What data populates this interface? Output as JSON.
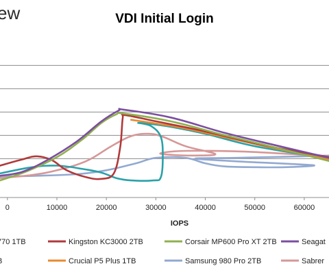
{
  "brand_text": "ew",
  "chart_data": {
    "type": "line",
    "title": "VDI Initial Login",
    "xlabel": "IOPS",
    "ylabel": "",
    "xlim": [
      -1500,
      65000
    ],
    "ylim": [
      -2,
      19
    ],
    "x_ticks": [
      {
        "value": 0,
        "label": "0"
      },
      {
        "value": 10000,
        "label": "10000"
      },
      {
        "value": 20000,
        "label": "20000"
      },
      {
        "value": 30000,
        "label": "30000"
      },
      {
        "value": 40000,
        "label": "40000"
      },
      {
        "value": 50000,
        "label": "50000"
      },
      {
        "value": 60000,
        "label": "60000"
      }
    ],
    "y_gridlines": [
      3,
      6,
      9,
      12,
      15
    ],
    "grid": true,
    "legend_position": "bottom",
    "series": [
      {
        "name": "Seagat",
        "color": "#7b4ea0",
        "points": [
          [
            -1500,
            0.8
          ],
          [
            3000,
            1.3
          ],
          [
            8000,
            2.8
          ],
          [
            14000,
            5.2
          ],
          [
            19000,
            7.8
          ],
          [
            22500,
            9.2
          ],
          [
            23500,
            9.3
          ],
          [
            33000,
            8.3
          ],
          [
            44000,
            6.3
          ],
          [
            55000,
            4.6
          ],
          [
            65000,
            3.1
          ]
        ]
      },
      {
        "name": "Corsair MP600 Pro XT 2TB",
        "color": "#8fb04e",
        "points": [
          [
            -1500,
            0.2
          ],
          [
            4000,
            1.4
          ],
          [
            10000,
            3.2
          ],
          [
            15000,
            5.4
          ],
          [
            19000,
            7.6
          ],
          [
            22000,
            8.7
          ],
          [
            23500,
            8.8
          ],
          [
            33000,
            7.8
          ],
          [
            44000,
            6.0
          ],
          [
            55000,
            4.3
          ],
          [
            65000,
            2.7
          ]
        ]
      },
      {
        "name": "Kingston KC3000 2TB",
        "color": "#b0393a",
        "points": [
          [
            -1500,
            2.1
          ],
          [
            3000,
            2.9
          ],
          [
            6000,
            3.3
          ],
          [
            9000,
            2.8
          ],
          [
            12000,
            1.5
          ],
          [
            16000,
            0.6
          ],
          [
            19000,
            0.4
          ],
          [
            21500,
            1.1
          ],
          [
            22800,
            4.5
          ],
          [
            23300,
            8.2
          ],
          [
            23800,
            8.6
          ],
          [
            30000,
            7.8
          ],
          [
            40000,
            6.5
          ],
          [
            52000,
            4.7
          ],
          [
            65000,
            3.2
          ]
        ]
      },
      {
        "name": "Crucial P5 Plus 1TB",
        "color": "#e88a2e",
        "points": [
          [
            25000,
            8.0
          ],
          [
            35000,
            7.0
          ],
          [
            45000,
            5.6
          ],
          [
            55000,
            4.2
          ],
          [
            65000,
            2.9
          ]
        ]
      },
      {
        "name": "",
        "color": "#2aa1a8",
        "points": [
          [
            -1500,
            1.1
          ],
          [
            5000,
            1.9
          ],
          [
            10000,
            2.1
          ],
          [
            15000,
            1.7
          ],
          [
            19000,
            1.2
          ],
          [
            22000,
            0.5
          ],
          [
            25000,
            0.2
          ],
          [
            29500,
            0.2
          ],
          [
            31000,
            0.6
          ],
          [
            31400,
            3.2
          ],
          [
            31000,
            5.8
          ],
          [
            29000,
            7.2
          ],
          [
            26500,
            7.6
          ],
          [
            32000,
            7.2
          ],
          [
            40000,
            6.2
          ],
          [
            50000,
            4.6
          ],
          [
            65000,
            3.0
          ]
        ]
      },
      {
        "name": "Samsung 980 Pro 2TB",
        "color": "#92a9d0",
        "points": [
          [
            -1500,
            0.7
          ],
          [
            6000,
            0.8
          ],
          [
            14000,
            1.0
          ],
          [
            20000,
            1.5
          ],
          [
            26000,
            2.4
          ],
          [
            30000,
            3.1
          ],
          [
            36000,
            3.1
          ],
          [
            40000,
            2.4
          ],
          [
            44000,
            2.0
          ],
          [
            50000,
            1.9
          ],
          [
            56000,
            1.9
          ],
          [
            62000,
            2.1
          ],
          [
            58000,
            2.3
          ],
          [
            48000,
            2.6
          ],
          [
            38000,
            3.0
          ],
          [
            46000,
            3.1
          ],
          [
            60000,
            3.3
          ],
          [
            65000,
            3.4
          ]
        ]
      },
      {
        "name": "Sabrer",
        "color": "#d69797",
        "points": [
          [
            -1500,
            0.5
          ],
          [
            5000,
            0.9
          ],
          [
            10000,
            1.5
          ],
          [
            16000,
            2.7
          ],
          [
            21000,
            4.6
          ],
          [
            25000,
            5.9
          ],
          [
            28500,
            6.2
          ],
          [
            31500,
            5.8
          ],
          [
            36000,
            4.6
          ],
          [
            42000,
            3.6
          ],
          [
            38000,
            3.4
          ],
          [
            33000,
            3.5
          ],
          [
            31000,
            3.7
          ],
          [
            36000,
            4.0
          ],
          [
            48000,
            3.9
          ],
          [
            65000,
            3.3
          ]
        ]
      }
    ],
    "legend": [
      {
        "label": "770 1TB",
        "color": "#d9a441"
      },
      {
        "label": "Kingston KC3000 2TB",
        "color": "#b0393a"
      },
      {
        "label": "Corsair MP600 Pro XT 2TB",
        "color": "#8fb04e"
      },
      {
        "label": "Seagat",
        "color": "#7b4ea0"
      },
      {
        "label": "B",
        "color": "#2aa1a8"
      },
      {
        "label": "Crucial P5 Plus 1TB",
        "color": "#e88a2e"
      },
      {
        "label": "Samsung 980 Pro 2TB",
        "color": "#92a9d0"
      },
      {
        "label": "Sabrer",
        "color": "#d69797"
      }
    ]
  }
}
